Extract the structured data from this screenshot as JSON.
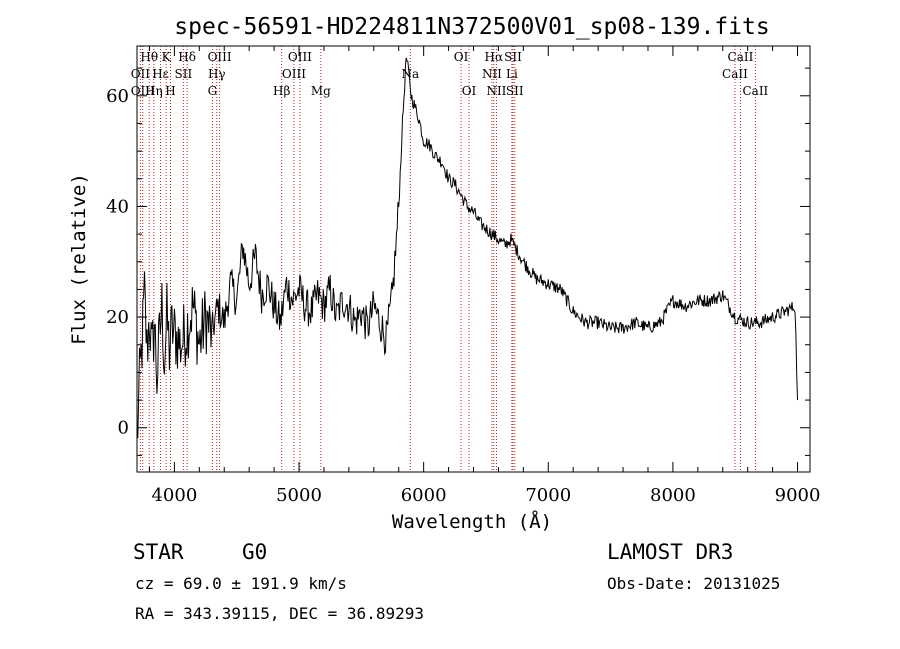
{
  "chart_data": {
    "type": "line",
    "title": "spec-56591-HD224811N372500V01_sp08-139.fits",
    "xlabel": "Wavelength (Å)",
    "ylabel": "Flux (relative)",
    "xlim": [
      3700,
      9100
    ],
    "ylim": [
      -8,
      69
    ],
    "xticks": [
      4000,
      5000,
      6000,
      7000,
      8000,
      9000
    ],
    "yticks": [
      0,
      20,
      40,
      60
    ],
    "grid": false,
    "series": [
      {
        "name": "spectrum",
        "x": [
          3700,
          3720,
          3740,
          3760,
          3780,
          3800,
          3820,
          3840,
          3860,
          3880,
          3900,
          3920,
          3940,
          3960,
          3980,
          4000,
          4050,
          4100,
          4150,
          4200,
          4250,
          4300,
          4350,
          4400,
          4450,
          4500,
          4550,
          4600,
          4650,
          4700,
          4750,
          4800,
          4850,
          4900,
          4950,
          5000,
          5050,
          5100,
          5150,
          5200,
          5250,
          5300,
          5350,
          5400,
          5450,
          5500,
          5550,
          5600,
          5650,
          5700,
          5750,
          5800,
          5830,
          5860,
          5880,
          5900,
          5930,
          5960,
          6000,
          6050,
          6100,
          6150,
          6200,
          6250,
          6300,
          6350,
          6400,
          6450,
          6500,
          6550,
          6600,
          6650,
          6700,
          6750,
          6800,
          6900,
          7000,
          7100,
          7200,
          7300,
          7400,
          7500,
          7600,
          7700,
          7800,
          7900,
          8000,
          8100,
          8200,
          8300,
          8400,
          8500,
          8600,
          8700,
          8800,
          8900,
          8980,
          9000
        ],
        "y": [
          -3,
          8,
          15,
          24,
          14,
          20,
          13,
          19,
          9,
          16,
          22,
          12,
          20,
          14,
          18,
          17,
          15,
          18,
          22,
          15,
          20,
          17,
          22,
          19,
          26,
          23,
          33,
          26,
          31,
          24,
          26,
          22,
          19,
          26,
          23,
          25,
          22,
          21,
          24,
          22,
          25,
          20,
          23,
          22,
          19,
          21,
          18,
          22,
          19,
          16,
          24,
          40,
          55,
          67,
          64,
          60,
          58,
          56,
          52,
          51,
          49,
          48,
          45,
          44,
          42,
          40,
          39,
          37,
          36,
          35,
          34,
          33,
          34,
          32,
          30,
          27,
          26,
          25,
          21,
          19,
          19,
          18,
          18,
          19,
          18,
          19,
          23,
          22,
          23,
          23,
          24,
          20,
          19,
          19,
          20,
          21,
          22,
          5
        ]
      }
    ],
    "spectral_lines": [
      {
        "label": "Hθ",
        "wavelength": 3798,
        "row": 1
      },
      {
        "label": "OII",
        "wavelength": 3727,
        "row": 2
      },
      {
        "label": "OIII",
        "wavelength": 3746,
        "row": 3
      },
      {
        "label": "Hη",
        "wavelength": 3835,
        "row": 3
      },
      {
        "label": "K",
        "wavelength": 3934,
        "row": 1
      },
      {
        "label": "Hε",
        "wavelength": 3889,
        "row": 2
      },
      {
        "label": "H",
        "wavelength": 3969,
        "row": 3
      },
      {
        "label": "SII",
        "wavelength": 4072,
        "row": 2
      },
      {
        "label": "Hδ",
        "wavelength": 4102,
        "row": 1
      },
      {
        "label": "OIII",
        "wavelength": 4363,
        "row": 1
      },
      {
        "label": "Hγ",
        "wavelength": 4340,
        "row": 2
      },
      {
        "label": "G",
        "wavelength": 4305,
        "row": 3
      },
      {
        "label": "Hβ",
        "wavelength": 4861,
        "row": 3
      },
      {
        "label": "OIII",
        "wavelength": 5007,
        "row": 1
      },
      {
        "label": "OIII",
        "wavelength": 4959,
        "row": 2
      },
      {
        "label": "Mg",
        "wavelength": 5175,
        "row": 3
      },
      {
        "label": "Na",
        "wavelength": 5893,
        "row": 2
      },
      {
        "label": "OI",
        "wavelength": 6300,
        "row": 1
      },
      {
        "label": "OI",
        "wavelength": 6364,
        "row": 3
      },
      {
        "label": "Hα",
        "wavelength": 6563,
        "row": 1
      },
      {
        "label": "NII",
        "wavelength": 6548,
        "row": 2
      },
      {
        "label": "NII",
        "wavelength": 6584,
        "row": 3
      },
      {
        "label": "SII",
        "wavelength": 6717,
        "row": 1
      },
      {
        "label": "Li",
        "wavelength": 6708,
        "row": 2
      },
      {
        "label": "SII",
        "wavelength": 6731,
        "row": 3
      },
      {
        "label": "CaII",
        "wavelength": 8542,
        "row": 1
      },
      {
        "label": "CaII",
        "wavelength": 8498,
        "row": 2
      },
      {
        "label": "CaII",
        "wavelength": 8662,
        "row": 3
      }
    ],
    "line_color": "#000000",
    "marker_color": "#b22222"
  },
  "info": {
    "object_type": "STAR",
    "subclass": "G0",
    "survey": "LAMOST DR3",
    "cz": "cz = 69.0 ± 191.9 km/s",
    "obs_date": "Obs-Date: 20131025",
    "coords": "RA = 343.39115, DEC =  36.89293"
  }
}
